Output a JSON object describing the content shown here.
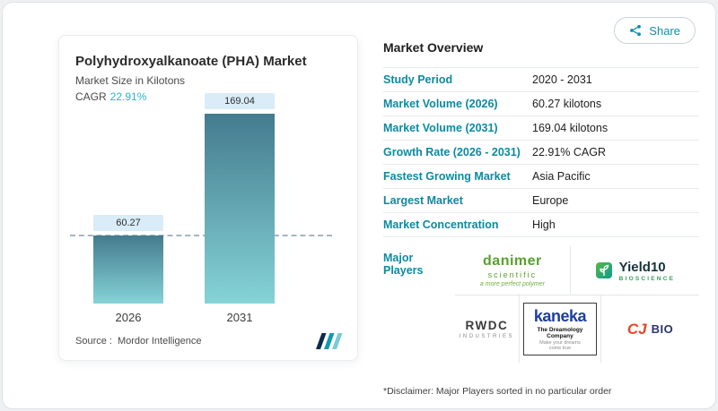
{
  "page": {
    "share_label": "Share"
  },
  "chart_card": {
    "title": "Polyhydroxyalkanoate (PHA) Market",
    "subtitle": "Market Size in Kilotons",
    "cagr_label": "CAGR",
    "cagr_value": "22.91%",
    "source_label": "Source :",
    "source_value": "Mordor Intelligence"
  },
  "chart_data": {
    "type": "bar",
    "categories": [
      "2026",
      "2031"
    ],
    "values": [
      60.27,
      169.04
    ],
    "value_labels": [
      "60.27",
      "169.04"
    ],
    "title": "Polyhydroxyalkanoate (PHA) Market",
    "ylabel": "Market Size in Kilotons",
    "ylim": [
      0,
      180
    ],
    "grid": "off",
    "legend": "none",
    "annotations": [
      "dashed horizontal reference line at 2026 bar value"
    ]
  },
  "overview": {
    "heading": "Market Overview",
    "rows": [
      {
        "label": "Study Period",
        "value": "2020 - 2031"
      },
      {
        "label": "Market Volume (2026)",
        "value": "60.27 kilotons"
      },
      {
        "label": "Market Volume (2031)",
        "value": "169.04 kilotons"
      },
      {
        "label": "Growth Rate (2026 - 2031)",
        "value": "22.91% CAGR"
      },
      {
        "label": "Fastest Growing Market",
        "value": "Asia Pacific"
      },
      {
        "label": "Largest Market",
        "value": "Europe"
      },
      {
        "label": "Market Concentration",
        "value": "High"
      }
    ],
    "major_players_label": "Major Players",
    "players": {
      "danimer": {
        "name": "danimer",
        "sub": "scientific",
        "tagline": "a more perfect polymer"
      },
      "yield10": {
        "name": "Yield10",
        "sub": "BIOSCIENCE"
      },
      "rwdc": {
        "name": "RWDC",
        "sub": "INDUSTRIES"
      },
      "kaneka": {
        "name": "kaneka",
        "sub": "The Dreamology Company",
        "tagline": "Make your dreams come true"
      },
      "cj": {
        "name": "CJ",
        "sub": "BIO"
      }
    },
    "disclaimer": "*Disclaimer: Major Players sorted in no particular order"
  },
  "colors": {
    "accent": "#0f8fa6",
    "cagr_value": "#2bb3c8",
    "bar_gradient_top": "#447b8e",
    "bar_gradient_bottom": "#85d3d7",
    "value_pill_bg": "#d9ecf7",
    "dashed_line": "#a3b6c4"
  }
}
